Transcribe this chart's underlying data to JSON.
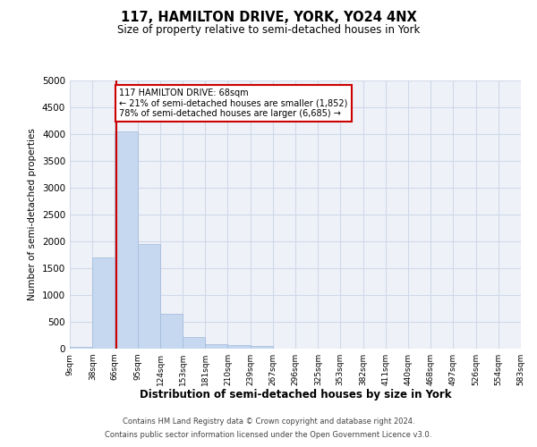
{
  "title": "117, HAMILTON DRIVE, YORK, YO24 4NX",
  "subtitle": "Size of property relative to semi-detached houses in York",
  "xlabel": "Distribution of semi-detached houses by size in York",
  "ylabel": "Number of semi-detached properties",
  "footer_line1": "Contains HM Land Registry data © Crown copyright and database right 2024.",
  "footer_line2": "Contains public sector information licensed under the Open Government Licence v3.0.",
  "property_size": 68,
  "property_label": "117 HAMILTON DRIVE: 68sqm",
  "smaller_pct": 21,
  "smaller_count": 1852,
  "larger_pct": 78,
  "larger_count": 6685,
  "bin_edges": [
    9,
    38,
    66,
    95,
    124,
    153,
    181,
    210,
    239,
    267,
    296,
    325,
    353,
    382,
    411,
    440,
    468,
    497,
    526,
    554,
    583
  ],
  "bin_labels": [
    "9sqm",
    "38sqm",
    "66sqm",
    "95sqm",
    "124sqm",
    "153sqm",
    "181sqm",
    "210sqm",
    "239sqm",
    "267sqm",
    "296sqm",
    "325sqm",
    "353sqm",
    "382sqm",
    "411sqm",
    "440sqm",
    "468sqm",
    "497sqm",
    "526sqm",
    "554sqm",
    "583sqm"
  ],
  "bar_heights": [
    30,
    1700,
    4050,
    1950,
    650,
    210,
    90,
    60,
    50,
    5,
    3,
    2,
    1,
    1,
    0,
    0,
    0,
    0,
    0,
    0
  ],
  "bar_color": "#c5d8f0",
  "bar_edge_color": "#a0b8d8",
  "vline_color": "#cc0000",
  "annotation_box_color": "#cc0000",
  "grid_color": "#d0d8e8",
  "background_color": "#eef2f8",
  "ylim": [
    0,
    5000
  ],
  "yticks": [
    0,
    500,
    1000,
    1500,
    2000,
    2500,
    3000,
    3500,
    4000,
    4500,
    5000
  ]
}
